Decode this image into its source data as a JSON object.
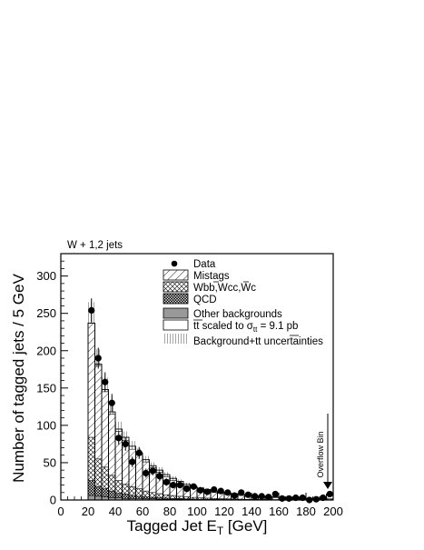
{
  "chart_data": {
    "type": "bar",
    "xlabel_main": "Tagged Jet E",
    "xlabel_sub": "T",
    "xlabel_unit": " [GeV]",
    "ylabel": "Number of tagged jets / 5 GeV",
    "annotation": "W + 1,2 jets",
    "overflow_label": "Overflow Bin",
    "xlim": [
      0,
      200
    ],
    "ylim": [
      0,
      330
    ],
    "xticks": [
      0,
      20,
      40,
      60,
      80,
      100,
      120,
      140,
      160,
      180,
      200
    ],
    "yticks": [
      0,
      50,
      100,
      150,
      200,
      250,
      300
    ],
    "bin_width": 5,
    "x": [
      22.5,
      27.5,
      32.5,
      37.5,
      42.5,
      47.5,
      52.5,
      57.5,
      62.5,
      67.5,
      72.5,
      77.5,
      82.5,
      87.5,
      92.5,
      97.5,
      102.5,
      107.5,
      112.5,
      117.5,
      122.5,
      127.5,
      132.5,
      137.5,
      142.5,
      147.5,
      152.5,
      157.5,
      162.5,
      167.5,
      172.5,
      177.5,
      182.5,
      187.5,
      192.5,
      197.5
    ],
    "stacks": {
      "other": [
        6,
        5,
        4,
        3,
        3,
        2,
        2,
        2,
        1.5,
        1.5,
        1,
        1,
        1,
        1,
        1,
        0.5,
        0.5,
        0.5,
        0.5,
        0.5,
        0.5,
        0.5,
        0.3,
        0.3,
        0.3,
        0.3,
        0.2,
        0.2,
        0.2,
        0.2,
        0.2,
        0.2,
        0.1,
        0.1,
        0.1,
        0.3
      ],
      "qcd": [
        26,
        18,
        15,
        12,
        9,
        8,
        6,
        5,
        4,
        3.5,
        3,
        2.5,
        2,
        2,
        1.5,
        1.2,
        1,
        1,
        0.8,
        0.7,
        0.6,
        0.5,
        0.5,
        0.4,
        0.4,
        0.3,
        0.3,
        0.3,
        0.2,
        0.2,
        0.2,
        0.2,
        0.2,
        0.1,
        0.1,
        0.5
      ],
      "wbb": [
        84,
        55,
        44,
        33,
        26,
        21,
        18,
        15,
        12,
        10,
        8.5,
        7,
        6,
        5,
        4.2,
        3.5,
        3,
        2.5,
        2.1,
        1.8,
        1.5,
        1.3,
        1.1,
        0.9,
        0.8,
        0.7,
        0.6,
        0.5,
        0.5,
        0.4,
        0.4,
        0.3,
        0.3,
        0.3,
        0.2,
        1.5
      ],
      "mistags": [
        237,
        180,
        145,
        115,
        92,
        80,
        68,
        60,
        51,
        43,
        37,
        31,
        26,
        22,
        19,
        16,
        14,
        12,
        10,
        9,
        8,
        7,
        6,
        5,
        4.5,
        4,
        3.5,
        3,
        2.7,
        2.4,
        2.1,
        1.9,
        1.7,
        1.5,
        1.3,
        6
      ],
      "total": [
        237,
        182,
        148,
        118,
        95,
        84,
        72,
        63,
        54,
        46,
        40,
        34,
        29,
        25,
        21,
        18,
        16,
        14,
        12,
        10.5,
        9.5,
        8.5,
        7.5,
        6.5,
        5.8,
        5.2,
        4.6,
        4.1,
        3.7,
        3.3,
        3,
        2.7,
        2.4,
        2.2,
        2,
        8
      ]
    },
    "band_halfwidth": [
      28,
      20,
      16,
      12,
      10,
      8,
      7,
      6,
      5,
      4.5,
      4,
      3.5,
      3,
      2.6,
      2.2,
      2,
      1.8,
      1.6,
      1.4,
      1.2,
      1.1,
      1,
      0.9,
      0.8,
      0.7,
      0.7,
      0.6,
      0.6,
      0.5,
      0.5,
      0.4,
      0.4,
      0.4,
      0.3,
      0.3,
      1
    ],
    "data_points": {
      "x": [
        22.5,
        27.5,
        32.5,
        37.5,
        42.5,
        47.5,
        52.5,
        57.5,
        62.5,
        67.5,
        72.5,
        77.5,
        82.5,
        87.5,
        92.5,
        97.5,
        102.5,
        107.5,
        112.5,
        117.5,
        122.5,
        127.5,
        132.5,
        137.5,
        142.5,
        147.5,
        152.5,
        157.5,
        162.5,
        167.5,
        172.5,
        177.5,
        182.5,
        187.5,
        192.5,
        197.5
      ],
      "y": [
        254,
        190,
        158,
        130,
        83,
        75,
        51,
        63,
        36,
        39,
        32,
        24,
        20,
        20,
        15,
        18,
        13,
        11,
        14,
        12,
        10,
        6,
        10,
        7,
        5,
        5,
        4,
        8,
        2,
        2,
        3,
        3,
        0,
        1,
        3,
        8
      ],
      "err": [
        16,
        14,
        13,
        12,
        9,
        9,
        7,
        8,
        6,
        6,
        6,
        5,
        4.5,
        4.5,
        4,
        4.2,
        3.6,
        3.3,
        3.7,
        3.5,
        3.2,
        2.5,
        3.2,
        2.6,
        2.2,
        2.2,
        2,
        2.8,
        1.4,
        1.4,
        1.7,
        1.7,
        0,
        1,
        1.7,
        2.8
      ]
    },
    "legend": {
      "placement": "top-right",
      "entries": [
        {
          "key": "data",
          "label": "Data"
        },
        {
          "key": "mistags",
          "label": "Mistags"
        },
        {
          "key": "wbb",
          "label_main": "Wbb",
          "label_mid": ",Wcc",
          "label_end": ",Wc"
        },
        {
          "key": "qcd",
          "label": "QCD"
        },
        {
          "key": "other",
          "label": "Other backgrounds"
        },
        {
          "key": "ttbar",
          "label_a": "tt",
          "label_b": " scaled to σ",
          "label_sub": "tt",
          "label_c": " = 9.1 pb"
        },
        {
          "key": "unc",
          "label": "Background+tt uncertainties"
        }
      ]
    },
    "colors": {
      "other": "#999999",
      "line": "#000000",
      "background": "#ffffff"
    }
  }
}
